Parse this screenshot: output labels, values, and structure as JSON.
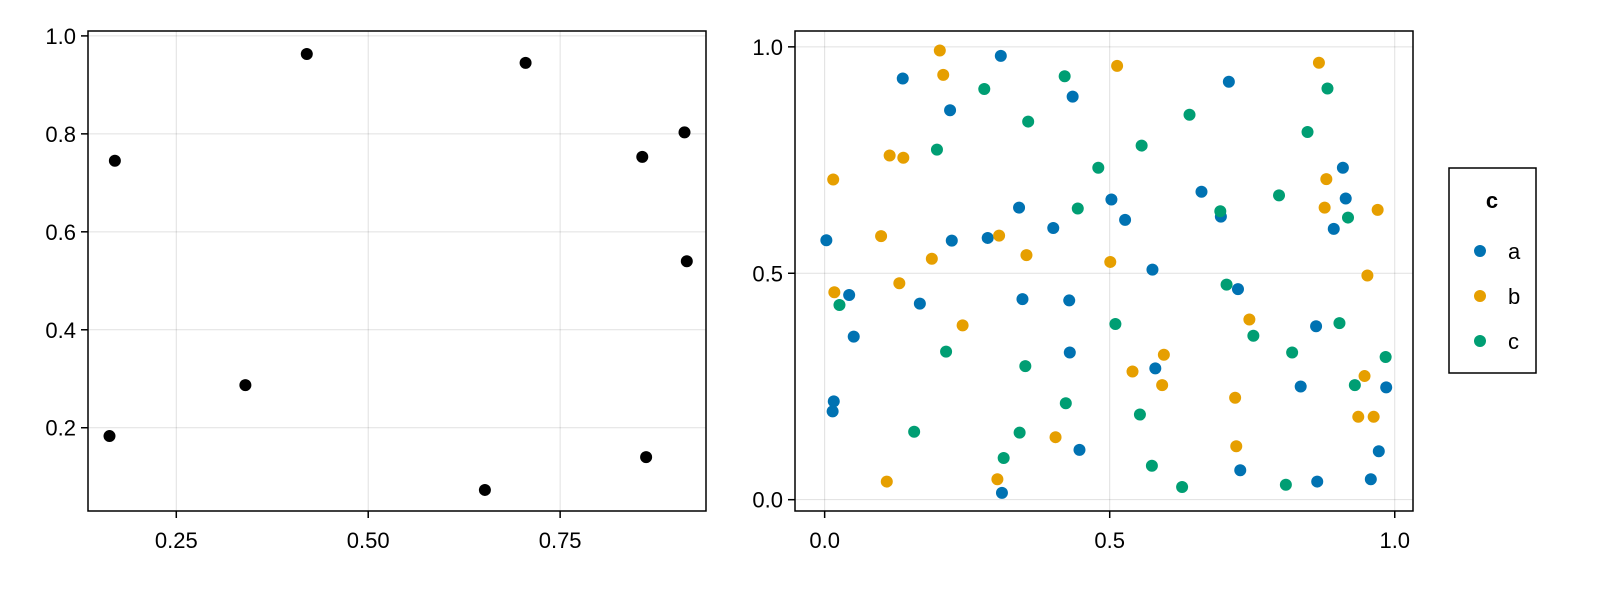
{
  "chart_data": [
    {
      "type": "scatter",
      "title": "",
      "xlabel": "",
      "ylabel": "",
      "xlim": [
        0.135,
        0.94
      ],
      "ylim": [
        0.03,
        1.01
      ],
      "xticks": [
        0.25,
        0.5,
        0.75
      ],
      "xtick_labels": [
        "0.25",
        "0.50",
        "0.75"
      ],
      "yticks": [
        0.2,
        0.4,
        0.6,
        0.8,
        1.0
      ],
      "ytick_labels": [
        "0.2",
        "0.4",
        "0.6",
        "0.8",
        "1.0"
      ],
      "grid": true,
      "series": [
        {
          "color": "#000000",
          "x": [
            0.17,
            0.42,
            0.705,
            0.912,
            0.857,
            0.915,
            0.163,
            0.34,
            0.652,
            0.862
          ],
          "y": [
            0.745,
            0.963,
            0.945,
            0.803,
            0.753,
            0.54,
            0.183,
            0.287,
            0.073,
            0.14
          ]
        }
      ]
    },
    {
      "type": "scatter",
      "title": "",
      "xlabel": "",
      "ylabel": "",
      "xlim": [
        -0.052,
        1.032
      ],
      "ylim": [
        -0.025,
        1.035
      ],
      "xticks": [
        0.0,
        0.5,
        1.0
      ],
      "xtick_labels": [
        "0.0",
        "0.5",
        "1.0"
      ],
      "yticks": [
        0.0,
        0.5,
        1.0
      ],
      "ytick_labels": [
        "0.0",
        "0.5",
        "1.0"
      ],
      "grid": true,
      "legend": {
        "title": "c",
        "position": "right"
      },
      "series": [
        {
          "name": "a",
          "color": "#0072B2",
          "x": [
            0.003,
            0.014,
            0.016,
            0.043,
            0.051,
            0.137,
            0.167,
            0.22,
            0.223,
            0.286,
            0.309,
            0.311,
            0.341,
            0.347,
            0.401,
            0.429,
            0.43,
            0.435,
            0.447,
            0.503,
            0.527,
            0.575,
            0.58,
            0.661,
            0.695,
            0.709,
            0.725,
            0.729,
            0.835,
            0.862,
            0.864,
            0.893,
            0.909,
            0.914,
            0.958,
            0.972,
            0.985
          ],
          "y": [
            0.573,
            0.195,
            0.217,
            0.452,
            0.36,
            0.93,
            0.433,
            0.86,
            0.572,
            0.578,
            0.98,
            0.015,
            0.645,
            0.443,
            0.6,
            0.44,
            0.325,
            0.89,
            0.11,
            0.663,
            0.618,
            0.508,
            0.29,
            0.68,
            0.625,
            0.923,
            0.465,
            0.065,
            0.25,
            0.383,
            0.04,
            0.598,
            0.733,
            0.665,
            0.045,
            0.107,
            0.248
          ]
        },
        {
          "name": "b",
          "color": "#E69F00",
          "x": [
            0.015,
            0.017,
            0.099,
            0.109,
            0.114,
            0.131,
            0.138,
            0.188,
            0.202,
            0.208,
            0.242,
            0.303,
            0.306,
            0.354,
            0.405,
            0.501,
            0.513,
            0.54,
            0.592,
            0.595,
            0.745,
            0.72,
            0.722,
            0.867,
            0.877,
            0.88,
            0.936,
            0.947,
            0.952,
            0.963,
            0.97
          ],
          "y": [
            0.707,
            0.458,
            0.582,
            0.04,
            0.76,
            0.478,
            0.755,
            0.532,
            0.992,
            0.938,
            0.385,
            0.045,
            0.583,
            0.54,
            0.138,
            0.525,
            0.958,
            0.283,
            0.253,
            0.32,
            0.398,
            0.225,
            0.118,
            0.965,
            0.645,
            0.708,
            0.183,
            0.273,
            0.495,
            0.183,
            0.64
          ]
        },
        {
          "name": "c",
          "color": "#009E73",
          "x": [
            0.026,
            0.157,
            0.197,
            0.213,
            0.28,
            0.314,
            0.342,
            0.352,
            0.357,
            0.421,
            0.423,
            0.444,
            0.48,
            0.51,
            0.553,
            0.556,
            0.574,
            0.627,
            0.64,
            0.694,
            0.705,
            0.752,
            0.797,
            0.809,
            0.82,
            0.847,
            0.882,
            0.903,
            0.918,
            0.93,
            0.984
          ],
          "y": [
            0.43,
            0.15,
            0.773,
            0.327,
            0.907,
            0.092,
            0.148,
            0.295,
            0.835,
            0.935,
            0.213,
            0.643,
            0.733,
            0.388,
            0.188,
            0.782,
            0.075,
            0.028,
            0.85,
            0.637,
            0.475,
            0.362,
            0.672,
            0.033,
            0.325,
            0.812,
            0.908,
            0.39,
            0.623,
            0.253,
            0.315
          ]
        }
      ]
    }
  ]
}
